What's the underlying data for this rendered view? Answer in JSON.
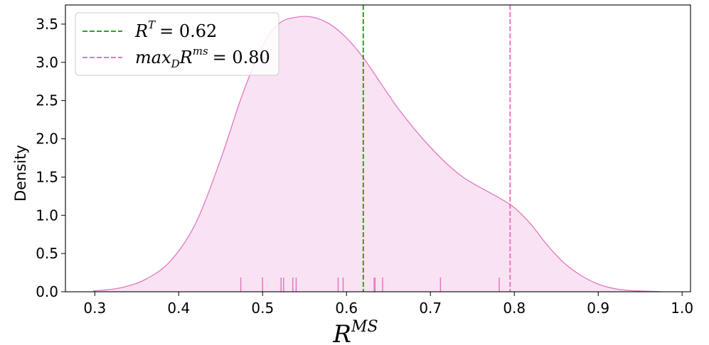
{
  "chart_data": {
    "type": "area",
    "xlabel": {
      "base": "R",
      "sup": "MS"
    },
    "ylabel": "Density",
    "xlim": [
      0.265,
      1.01
    ],
    "ylim": [
      0,
      3.75
    ],
    "xticks": [
      "0.3",
      "0.4",
      "0.5",
      "0.6",
      "0.7",
      "0.8",
      "0.9",
      "1.0"
    ],
    "yticks": [
      "0.0",
      "0.5",
      "1.0",
      "1.5",
      "2.0",
      "2.5",
      "3.0",
      "3.5"
    ],
    "grid": false,
    "legend_position": "top-left",
    "colors": {
      "density": "#e377c2",
      "fill": "#f9e3f2",
      "rt_line": "#2ca02c",
      "max_line": "#e377c2"
    },
    "density_curve": {
      "x": [
        0.298,
        0.33,
        0.36,
        0.39,
        0.42,
        0.45,
        0.475,
        0.5,
        0.52,
        0.54,
        0.56,
        0.58,
        0.6,
        0.62,
        0.64,
        0.66,
        0.68,
        0.7,
        0.72,
        0.74,
        0.76,
        0.78,
        0.8,
        0.82,
        0.84,
        0.86,
        0.88,
        0.9,
        0.92,
        0.94,
        0.975
      ],
      "y": [
        0.01,
        0.05,
        0.16,
        0.4,
        0.89,
        1.73,
        2.55,
        3.22,
        3.51,
        3.59,
        3.59,
        3.5,
        3.32,
        3.06,
        2.74,
        2.42,
        2.14,
        1.89,
        1.67,
        1.49,
        1.36,
        1.24,
        1.1,
        0.88,
        0.6,
        0.37,
        0.21,
        0.1,
        0.04,
        0.015,
        0.001
      ]
    },
    "rug": [
      0.474,
      0.5,
      0.522,
      0.525,
      0.536,
      0.54,
      0.59,
      0.596,
      0.633,
      0.634,
      0.643,
      0.712,
      0.782
    ],
    "reference_lines": [
      {
        "x": 0.62,
        "color": "#2ca02c",
        "legend": {
          "lhs": "R",
          "sup": "T",
          "rhs": "= 0.62"
        }
      },
      {
        "x": 0.795,
        "color": "#e377c2",
        "legend": {
          "lhs": "max",
          "sub": "D",
          "mid": "R",
          "sup": "ms",
          "rhs": "= 0.80"
        }
      }
    ]
  }
}
